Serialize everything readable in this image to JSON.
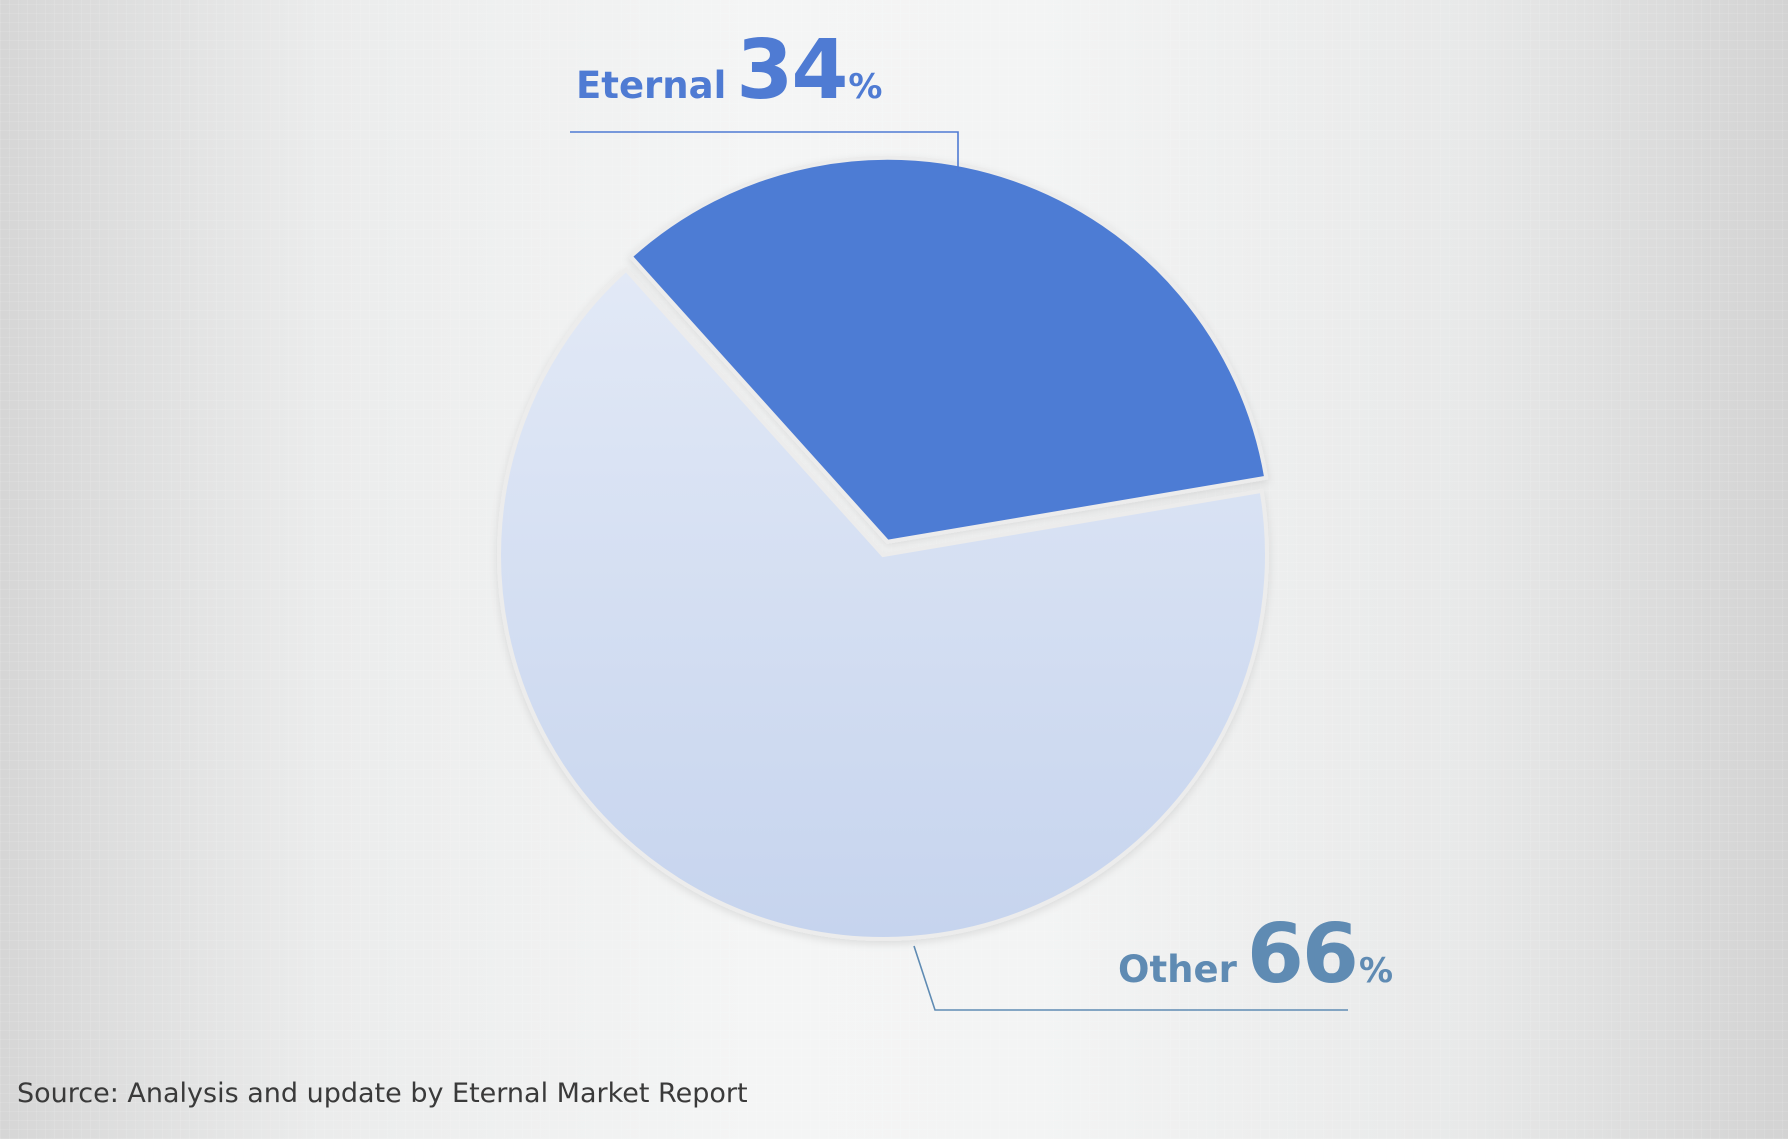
{
  "chart_data": {
    "type": "pie",
    "title": "",
    "categories": [
      "Eternal",
      "Other"
    ],
    "values": [
      34,
      66
    ],
    "unit": "%",
    "colors": [
      "#4d7bd4",
      "#cdd9f0"
    ],
    "label_colors": [
      "#4f7bd3",
      "#5f8bb3"
    ],
    "legend": "none",
    "source": "Source:  Analysis and update by Eternal Market Report"
  }
}
